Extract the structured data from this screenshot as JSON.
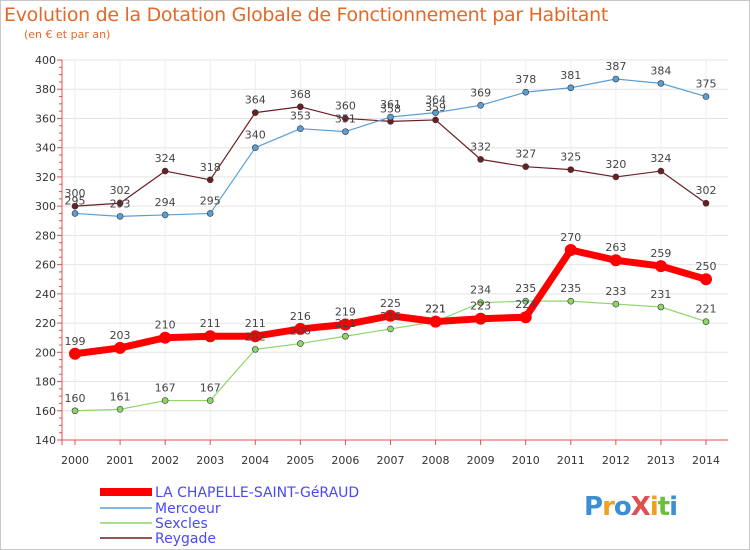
{
  "page": {
    "title": "Evolution de la Dotation Globale de Fonctionnement par Habitant",
    "subtitle": "(en € et par an)",
    "logo_text": "ProXiti"
  },
  "chart_data": {
    "type": "line",
    "title": "Evolution de la Dotation Globale de Fonctionnement par Habitant",
    "subtitle": "(en € et par an)",
    "xlabel": "",
    "ylabel": "",
    "ylim": [
      140,
      400
    ],
    "yticks": [
      140,
      160,
      180,
      200,
      220,
      240,
      260,
      280,
      300,
      320,
      340,
      360,
      380,
      400
    ],
    "grid": true,
    "legend_position": "bottom-left",
    "x": [
      "2000",
      "2001",
      "2002",
      "2003",
      "2004",
      "2005",
      "2006",
      "2007",
      "2008",
      "2009",
      "2010",
      "2011",
      "2012",
      "2013",
      "2014"
    ],
    "series": [
      {
        "name": "LA CHAPELLE-SAINT-GéRAUD",
        "color": "#ff0000",
        "values": [
          199,
          203,
          210,
          211,
          211,
          216,
          219,
          225,
          221,
          223,
          224,
          270,
          263,
          259,
          250
        ],
        "labels": [
          "199",
          "203",
          "210",
          "211",
          "211",
          "216",
          "219",
          "225",
          "221",
          "223",
          "224",
          "270",
          "263",
          "259",
          "250"
        ]
      },
      {
        "name": "Mercoeur",
        "color": "#5a9ed6",
        "values": [
          295,
          293,
          294,
          295,
          340,
          353,
          351,
          361,
          364,
          369,
          378,
          381,
          387,
          384,
          375
        ],
        "labels": [
          "295",
          "293",
          "294",
          "295",
          "340",
          "353",
          "351",
          "361",
          "364",
          "369",
          "378",
          "381",
          "387",
          "384",
          "375"
        ]
      },
      {
        "name": "Sexcles",
        "color": "#8ed66a",
        "values": [
          160,
          161,
          167,
          167,
          202,
          206,
          211,
          216,
          221,
          234,
          235,
          235,
          233,
          231,
          221
        ],
        "labels": [
          "160",
          "161",
          "167",
          "167",
          "202",
          "206",
          "211",
          "216",
          "221",
          "234",
          "235",
          "235",
          "233",
          "231",
          "221"
        ]
      },
      {
        "name": "Reygade",
        "color": "#6b1f24",
        "values": [
          300,
          302,
          324,
          318,
          364,
          368,
          360,
          358,
          359,
          332,
          327,
          325,
          320,
          324,
          302
        ],
        "labels": [
          "300",
          "302",
          "324",
          "318",
          "364",
          "368",
          "360",
          "358",
          "359",
          "332",
          "327",
          "325",
          "320",
          "324",
          "302"
        ]
      }
    ]
  }
}
